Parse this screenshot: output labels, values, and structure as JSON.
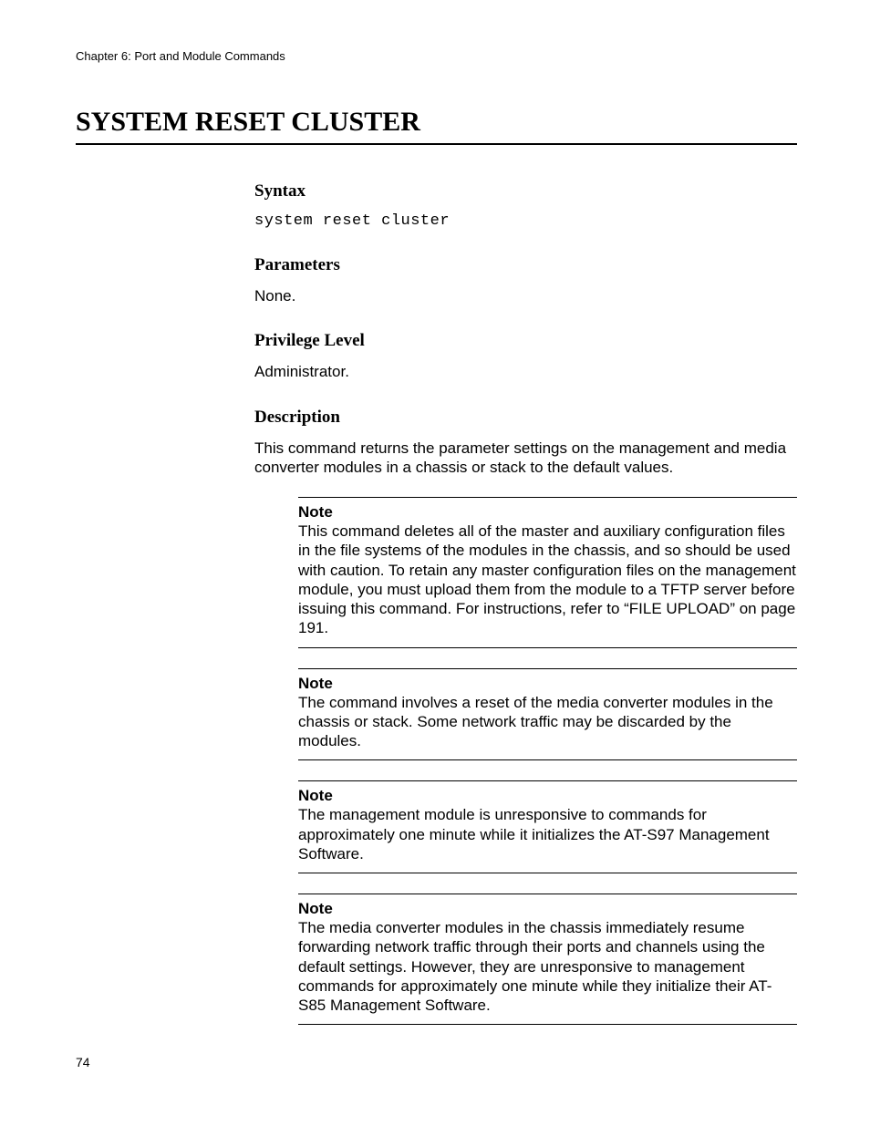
{
  "header": {
    "chapter": "Chapter 6: Port and Module Commands"
  },
  "title": "SYSTEM RESET CLUSTER",
  "sections": {
    "syntax": {
      "heading": "Syntax",
      "code": "system reset cluster"
    },
    "parameters": {
      "heading": "Parameters",
      "text": "None."
    },
    "privilege": {
      "heading": "Privilege Level",
      "text": "Administrator."
    },
    "description": {
      "heading": "Description",
      "text": "This command returns the parameter settings on the management and media converter modules in a chassis or stack to the default values."
    }
  },
  "notes": [
    {
      "label": "Note",
      "body": "This command deletes all of the master and auxiliary configuration files in the file systems of the modules in the chassis, and so should be used with caution. To retain any master configuration files on the management module, you must upload them from the module to a TFTP server before issuing this command. For instructions, refer to “FILE UPLOAD” on page 191."
    },
    {
      "label": "Note",
      "body": "The command involves a reset of the media converter modules in the chassis or stack. Some network traffic may be discarded by the modules."
    },
    {
      "label": "Note",
      "body": "The management module is unresponsive to commands for approximately one minute while it initializes the AT-S97 Management Software."
    },
    {
      "label": "Note",
      "body": "The media converter modules in the chassis immediately resume forwarding network traffic through their ports and channels using the default settings. However, they are unresponsive to management commands for approximately one minute while they initialize their AT-S85 Management Software."
    }
  ],
  "pageNumber": "74"
}
